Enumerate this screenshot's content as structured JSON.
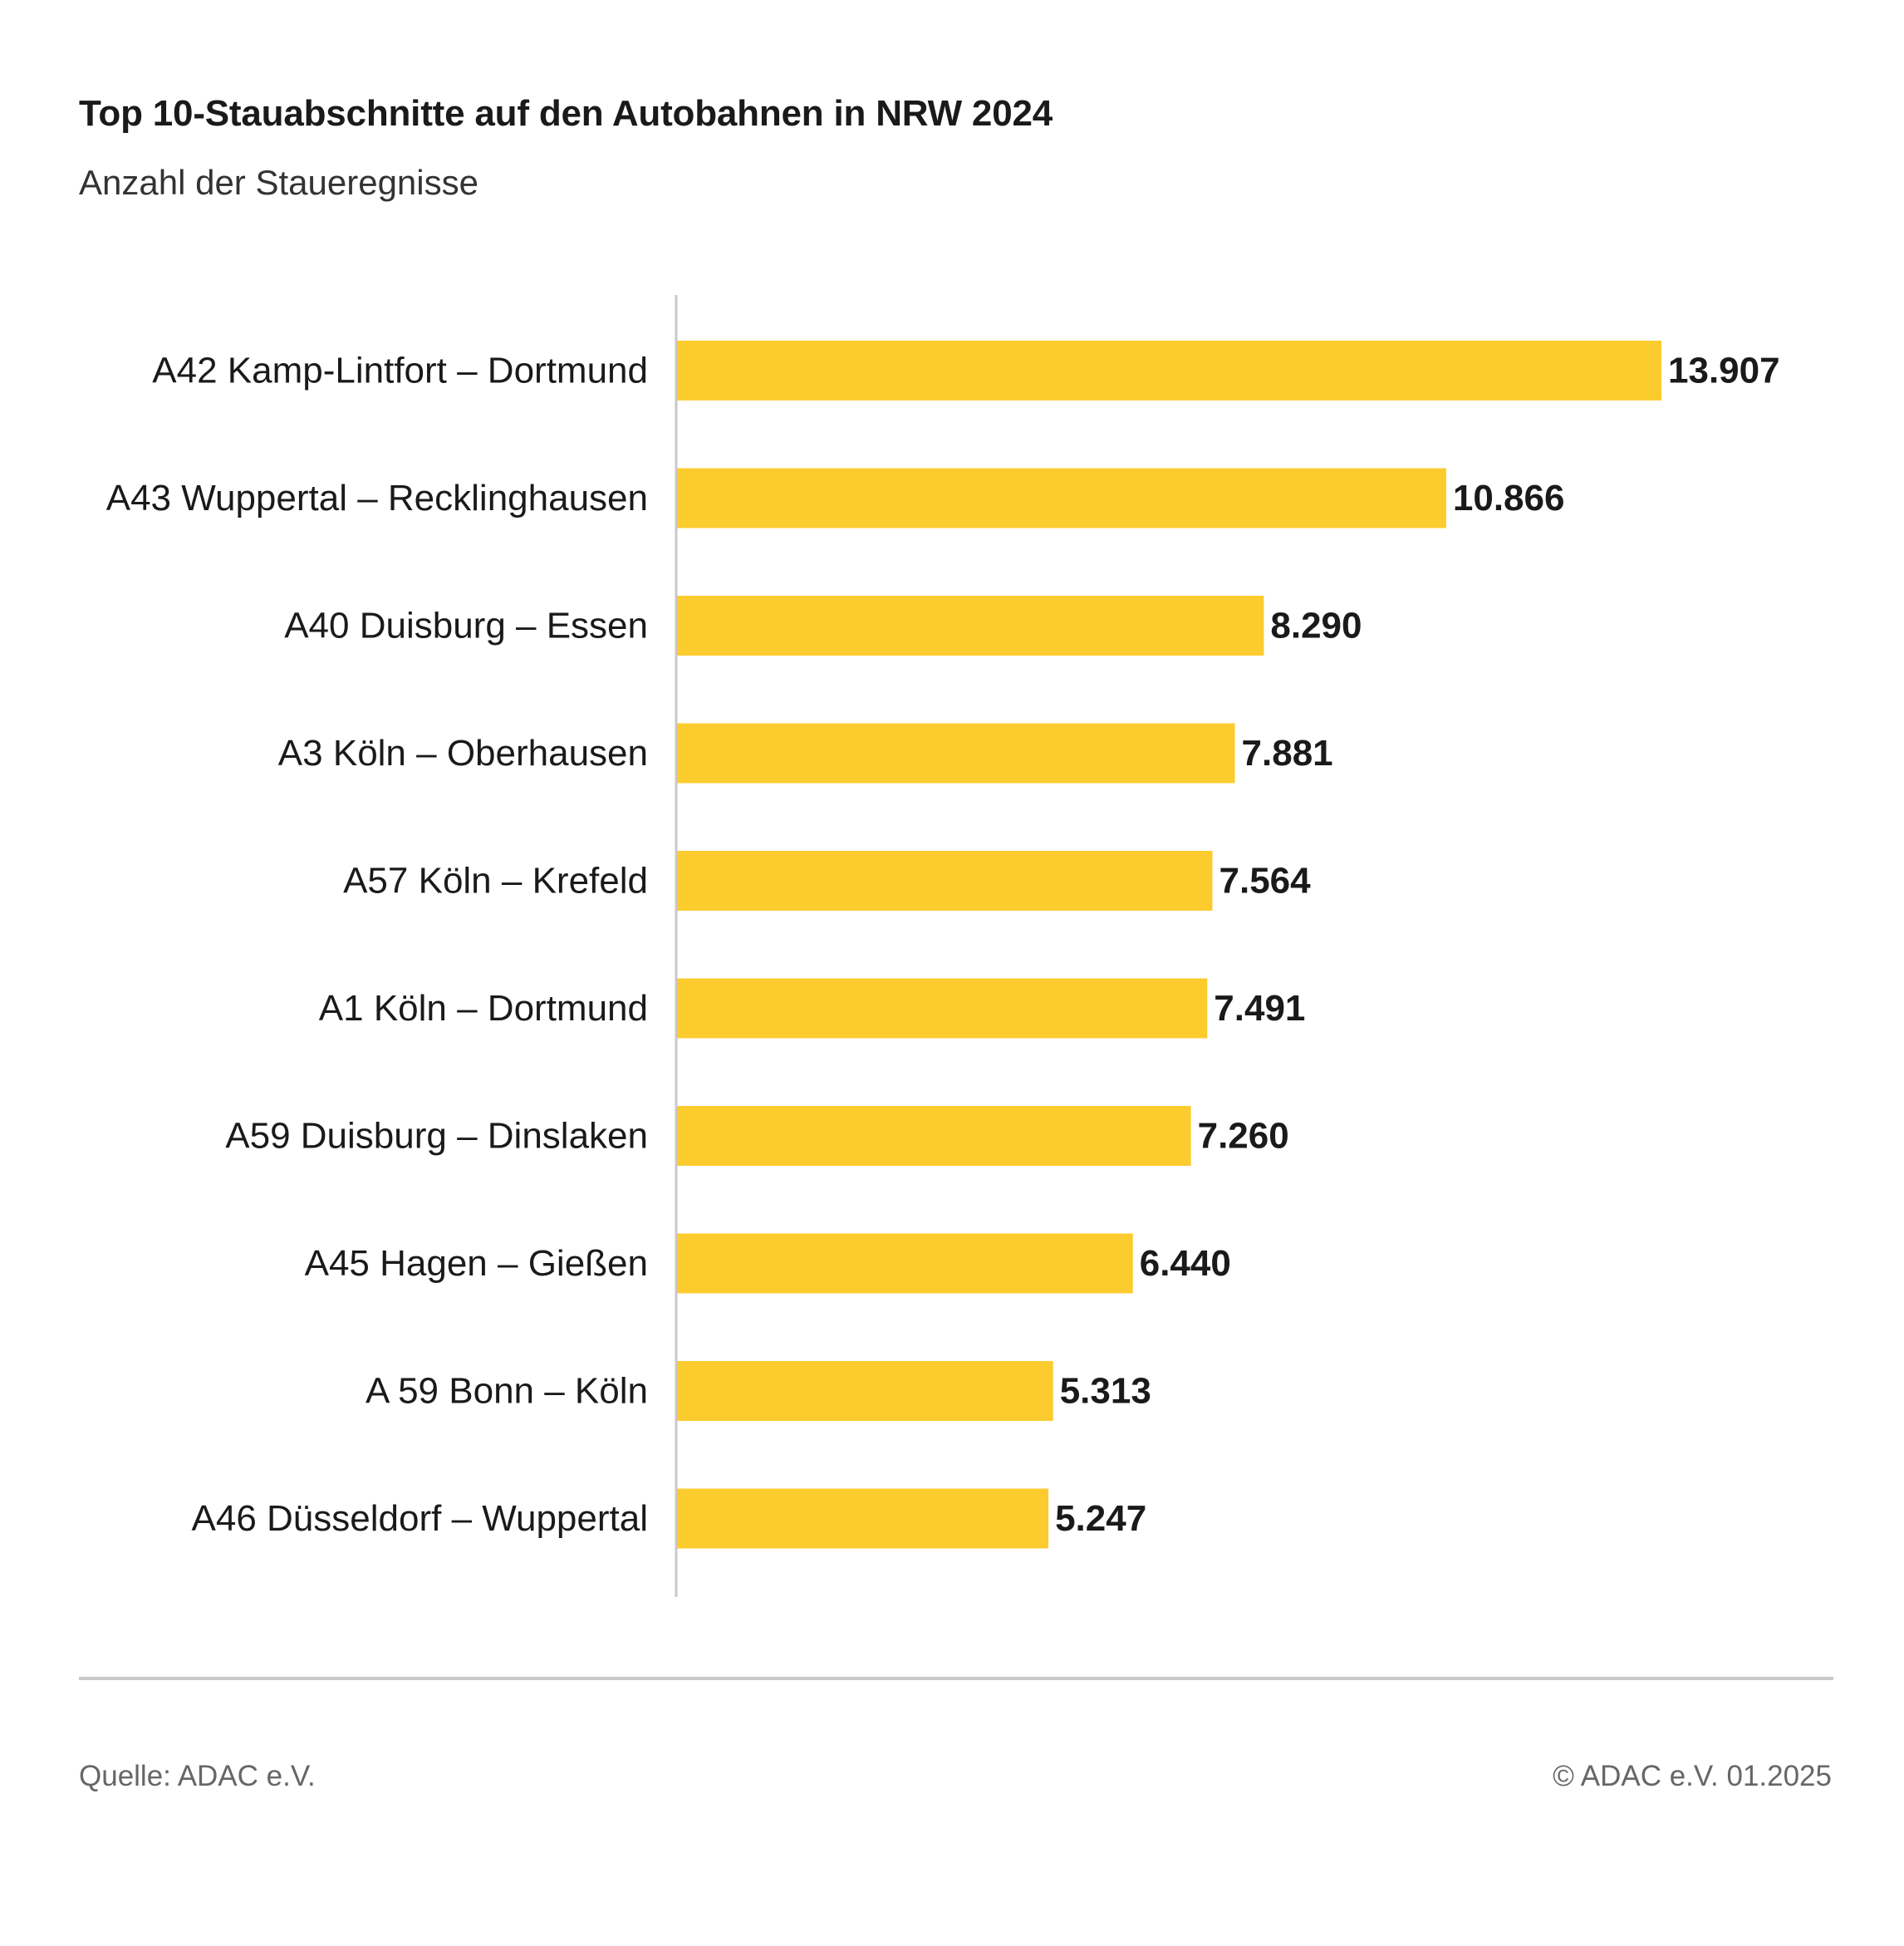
{
  "title": "Top 10-Stauabschnitte auf den Autobahnen in NRW 2024",
  "subtitle": "Anzahl der Staueregnisse",
  "footer": {
    "source": "Quelle: ADAC e.V.",
    "copyright": "© ADAC e.V. 01.2025"
  },
  "colors": {
    "bar": "#FCCB2E",
    "axis": "#c8c8c8",
    "text": "#1a1a1a"
  },
  "chart_data": {
    "type": "bar",
    "orientation": "horizontal",
    "title": "Top 10-Stauabschnitte auf den Autobahnen in NRW 2024",
    "subtitle": "Anzahl der Staueregnisse",
    "categories": [
      "A42 Kamp-Lintfort – Dortmund",
      "A43 Wuppertal – Recklinghausen",
      "A40 Duisburg – Essen",
      "A3 Köln – Oberhausen",
      "A57 Köln – Krefeld",
      "A1 Köln – Dortmund",
      "A59 Duisburg – Dinslaken",
      "A45 Hagen – Gießen",
      "A 59 Bonn – Köln",
      "A46 Düsseldorf – Wuppertal"
    ],
    "values": [
      13907,
      10866,
      8290,
      7881,
      7564,
      7491,
      7260,
      6440,
      5313,
      5247
    ],
    "value_labels": [
      "13.907",
      "10.866",
      "8.290",
      "7.881",
      "7.564",
      "7.491",
      "7.260",
      "6.440",
      "5.313",
      "5.247"
    ],
    "xlabel": "",
    "ylabel": "",
    "grid": false,
    "legend": "none"
  }
}
